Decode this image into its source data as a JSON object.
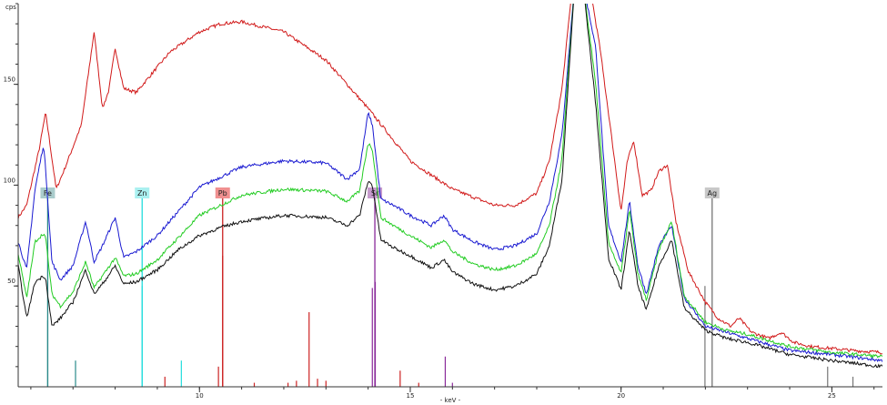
{
  "chart_data": {
    "type": "line",
    "title": "",
    "xlabel": "- keV -",
    "ylabel": "cps",
    "xlim": [
      5.7,
      26.2
    ],
    "ylim": [
      0,
      190
    ],
    "x_ticks": [
      10,
      15,
      20,
      25
    ],
    "y_ticks": [
      50,
      100,
      150
    ],
    "grid": false,
    "legend": "none",
    "series": [
      {
        "color": "#d11a1a",
        "x": [
          5.7,
          5.9,
          6.2,
          6.35,
          6.45,
          6.6,
          6.8,
          7.2,
          7.5,
          7.7,
          7.85,
          8.0,
          8.2,
          8.5,
          8.9,
          9.3,
          10.0,
          10.5,
          11.0,
          12.0,
          13.0,
          14.0,
          15.0,
          16.0,
          17.0,
          17.5,
          18.0,
          18.3,
          18.6,
          18.85,
          19.05,
          19.25,
          19.5,
          19.8,
          20.0,
          20.15,
          20.3,
          20.5,
          20.7,
          20.9,
          21.1,
          21.3,
          21.6,
          22.0,
          22.3,
          22.6,
          22.8,
          23.1,
          23.5,
          23.8,
          24.1,
          24.5,
          25.0,
          25.5,
          26.2
        ],
        "y": [
          84,
          90,
          118,
          136,
          121,
          98,
          108,
          130,
          176,
          138,
          147,
          168,
          148,
          146,
          156,
          166,
          176,
          180,
          181,
          176,
          162,
          138,
          112,
          98,
          90,
          90,
          96,
          112,
          148,
          200,
          200,
          200,
          168,
          120,
          87,
          112,
          122,
          95,
          97,
          107,
          110,
          82,
          57,
          42,
          34,
          30,
          34,
          27,
          24,
          27,
          22,
          20,
          19,
          18,
          17
        ]
      },
      {
        "color": "#1a1ad1",
        "x": [
          5.7,
          5.9,
          6.1,
          6.3,
          6.35,
          6.5,
          6.7,
          7.0,
          7.3,
          7.5,
          7.7,
          8.0,
          8.2,
          8.5,
          9.0,
          9.5,
          10.0,
          10.5,
          11.0,
          12.0,
          13.0,
          13.5,
          13.8,
          14.0,
          14.1,
          14.3,
          14.6,
          15.0,
          15.5,
          15.8,
          16.0,
          16.5,
          17.0,
          17.5,
          18.0,
          18.3,
          18.6,
          18.9,
          19.1,
          19.4,
          19.7,
          20.0,
          20.2,
          20.4,
          20.6,
          20.9,
          21.2,
          21.5,
          22.0,
          22.5,
          23.0,
          23.5,
          24.0,
          25.0,
          26.2
        ],
        "y": [
          72,
          58,
          98,
          120,
          108,
          62,
          53,
          60,
          82,
          62,
          70,
          84,
          64,
          67,
          75,
          87,
          99,
          104,
          109,
          112,
          111,
          103,
          108,
          136,
          130,
          93,
          90,
          85,
          80,
          85,
          78,
          72,
          68,
          70,
          76,
          92,
          125,
          200,
          200,
          168,
          80,
          62,
          92,
          60,
          46,
          70,
          80,
          44,
          30,
          27,
          24,
          21,
          18,
          16,
          13
        ]
      },
      {
        "color": "#22cc22",
        "x": [
          5.7,
          5.9,
          6.1,
          6.3,
          6.35,
          6.5,
          6.7,
          7.0,
          7.3,
          7.5,
          7.7,
          8.0,
          8.2,
          8.5,
          9.0,
          9.5,
          10.0,
          10.5,
          11.0,
          12.0,
          13.0,
          13.5,
          13.8,
          14.0,
          14.1,
          14.3,
          14.6,
          15.0,
          15.5,
          15.8,
          16.0,
          16.5,
          17.0,
          17.5,
          18.0,
          18.3,
          18.6,
          18.9,
          19.1,
          19.4,
          19.7,
          20.0,
          20.2,
          20.4,
          20.6,
          20.9,
          21.2,
          21.5,
          22.0,
          22.5,
          23.0,
          23.5,
          24.0,
          25.0,
          26.2
        ],
        "y": [
          66,
          44,
          72,
          76,
          74,
          46,
          40,
          47,
          62,
          49,
          55,
          64,
          55,
          56,
          63,
          74,
          85,
          90,
          95,
          98,
          97,
          92,
          97,
          121,
          118,
          84,
          80,
          75,
          69,
          73,
          67,
          61,
          58,
          60,
          66,
          80,
          113,
          200,
          200,
          150,
          72,
          56,
          88,
          56,
          43,
          68,
          82,
          45,
          32,
          28,
          26,
          23,
          20,
          17,
          15
        ]
      },
      {
        "color": "#111111",
        "x": [
          5.7,
          5.9,
          6.1,
          6.3,
          6.35,
          6.5,
          6.7,
          7.0,
          7.3,
          7.5,
          7.7,
          8.0,
          8.2,
          8.5,
          9.0,
          9.5,
          10.0,
          10.5,
          11.0,
          12.0,
          13.0,
          13.5,
          13.8,
          14.0,
          14.1,
          14.3,
          14.6,
          15.0,
          15.5,
          15.8,
          16.0,
          16.5,
          17.0,
          17.5,
          18.0,
          18.3,
          18.6,
          18.9,
          19.1,
          19.4,
          19.7,
          20.0,
          20.2,
          20.4,
          20.6,
          20.9,
          21.2,
          21.5,
          22.0,
          22.5,
          23.0,
          23.5,
          24.0,
          25.0,
          26.2
        ],
        "y": [
          60,
          34,
          52,
          55,
          54,
          30,
          34,
          42,
          58,
          46,
          51,
          60,
          51,
          52,
          58,
          68,
          75,
          79,
          82,
          85,
          84,
          80,
          85,
          102,
          100,
          73,
          69,
          65,
          59,
          63,
          57,
          51,
          48,
          50,
          56,
          70,
          103,
          200,
          200,
          140,
          64,
          48,
          78,
          50,
          38,
          60,
          73,
          39,
          28,
          24,
          22,
          19,
          16,
          13,
          10
        ]
      }
    ],
    "element_lines": [
      {
        "label": "Fe",
        "energy": 6.4,
        "color": "#2a8a8a",
        "label_bg": "#aacccc",
        "line_top": 214
      },
      {
        "label": "Zn",
        "energy": 8.64,
        "color": "#22dddd",
        "label_bg": "#aaf0f0",
        "line_top": 214
      },
      {
        "label": "Pb",
        "energy": 10.55,
        "color": "#cc2222",
        "label_bg": "#f09090",
        "line_top": 214
      },
      {
        "label": "Sr",
        "energy": 14.16,
        "color": "#8a2a9a",
        "label_bg": "#c69acc",
        "line_top": 214
      },
      {
        "label": "Ag",
        "energy": 22.16,
        "color": "#777777",
        "label_bg": "#c8c8c8",
        "line_top": 214
      }
    ],
    "sticks": [
      {
        "energy": 6.4,
        "height": 33,
        "color": "#2a8a8a"
      },
      {
        "energy": 7.06,
        "height": 13,
        "color": "#2a8a8a"
      },
      {
        "energy": 8.64,
        "height": 50,
        "color": "#22dddd"
      },
      {
        "energy": 9.57,
        "height": 13,
        "color": "#22dddd"
      },
      {
        "energy": 9.18,
        "height": 5,
        "color": "#cc2222"
      },
      {
        "energy": 10.45,
        "height": 10,
        "color": "#cc2222"
      },
      {
        "energy": 10.55,
        "height": 65,
        "color": "#cc2222"
      },
      {
        "energy": 11.3,
        "height": 2,
        "color": "#cc2222"
      },
      {
        "energy": 12.1,
        "height": 2,
        "color": "#cc2222"
      },
      {
        "energy": 12.3,
        "height": 3,
        "color": "#cc2222"
      },
      {
        "energy": 12.6,
        "height": 37,
        "color": "#cc2222"
      },
      {
        "energy": 12.8,
        "height": 4,
        "color": "#cc2222"
      },
      {
        "energy": 13.0,
        "height": 3,
        "color": "#cc2222"
      },
      {
        "energy": 14.76,
        "height": 8,
        "color": "#cc2222"
      },
      {
        "energy": 15.2,
        "height": 2,
        "color": "#cc2222"
      },
      {
        "energy": 14.1,
        "height": 49,
        "color": "#8a2a9a"
      },
      {
        "energy": 14.17,
        "height": 52,
        "color": "#8a2a9a"
      },
      {
        "energy": 15.83,
        "height": 15,
        "color": "#8a2a9a"
      },
      {
        "energy": 16.0,
        "height": 2,
        "color": "#8a2a9a"
      },
      {
        "energy": 21.99,
        "height": 50,
        "color": "#777777"
      },
      {
        "energy": 24.9,
        "height": 10,
        "color": "#777777"
      },
      {
        "energy": 25.5,
        "height": 5,
        "color": "#777777"
      }
    ]
  }
}
